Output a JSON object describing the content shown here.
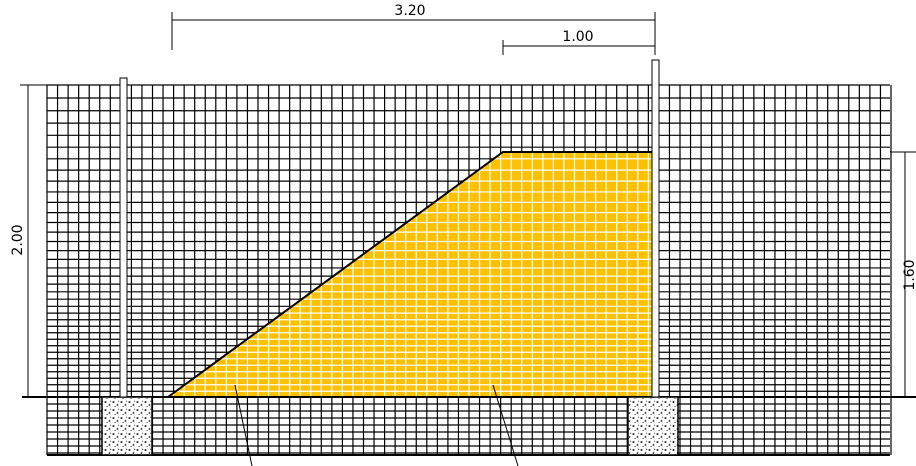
{
  "dimensions": {
    "total_width": "3.20",
    "top_width": "1.00",
    "fence_height": "2.00",
    "fill_height": "1.60"
  }
}
